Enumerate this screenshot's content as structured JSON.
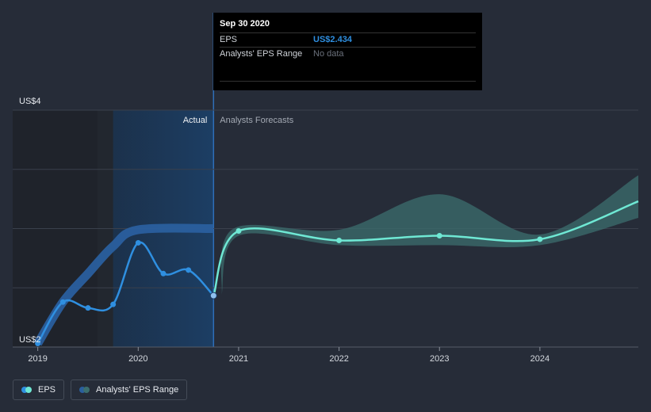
{
  "chart_data": {
    "type": "line",
    "y_axis": {
      "ticks": [
        {
          "value": 4,
          "label": "US$4"
        },
        {
          "value": 2,
          "label": "US$2"
        }
      ],
      "ylim": [
        2,
        4
      ]
    },
    "x_axis": {
      "ticks": [
        "2019",
        "2020",
        "2021",
        "2022",
        "2023",
        "2024"
      ],
      "xlim": [
        2018.75,
        2024.98
      ]
    },
    "section_labels": {
      "actual": "Actual",
      "forecast": "Analysts Forecasts"
    },
    "actual_boundary_x": 2020.75,
    "series": [
      {
        "name": "EPS",
        "color": "#2f8fe0",
        "points": [
          {
            "x": 2019.0,
            "y": 2.03
          },
          {
            "x": 2019.25,
            "y": 2.38
          },
          {
            "x": 2019.5,
            "y": 2.33
          },
          {
            "x": 2019.75,
            "y": 2.36
          },
          {
            "x": 2020.0,
            "y": 2.88
          },
          {
            "x": 2020.25,
            "y": 2.62
          },
          {
            "x": 2020.5,
            "y": 2.65
          },
          {
            "x": 2020.75,
            "y": 2.434
          }
        ]
      },
      {
        "name": "EPS forecast",
        "color": "#6fe8d4",
        "points": [
          {
            "x": 2020.75,
            "y": 2.434
          },
          {
            "x": 2021.0,
            "y": 2.98
          },
          {
            "x": 2022.0,
            "y": 2.9
          },
          {
            "x": 2023.0,
            "y": 2.94
          },
          {
            "x": 2024.0,
            "y": 2.91
          },
          {
            "x": 2024.98,
            "y": 3.23
          }
        ]
      }
    ],
    "analyst_range": {
      "name": "Analysts' EPS Range",
      "color": "#3c6e6e",
      "actual_upper": [
        {
          "x": 2019.0,
          "y": 2.03
        },
        {
          "x": 2019.25,
          "y": 2.38
        },
        {
          "x": 2019.5,
          "y": 2.62
        },
        {
          "x": 2019.75,
          "y": 2.85
        },
        {
          "x": 2020.0,
          "y": 2.99
        },
        {
          "x": 2020.75,
          "y": 3.0
        }
      ],
      "forecast_upper": [
        {
          "x": 2020.95,
          "y": 3.0
        },
        {
          "x": 2022.0,
          "y": 2.99
        },
        {
          "x": 2023.0,
          "y": 3.29
        },
        {
          "x": 2024.0,
          "y": 2.95
        },
        {
          "x": 2024.98,
          "y": 3.45
        }
      ],
      "forecast_lower": [
        {
          "x": 2024.98,
          "y": 3.09
        },
        {
          "x": 2024.0,
          "y": 2.86
        },
        {
          "x": 2023.0,
          "y": 2.86
        },
        {
          "x": 2022.0,
          "y": 2.86
        },
        {
          "x": 2021.0,
          "y": 2.94
        }
      ]
    }
  },
  "tooltip": {
    "date": "Sep 30 2020",
    "rows": [
      {
        "label": "EPS",
        "value": "US$2.434"
      },
      {
        "label": "Analysts' EPS Range",
        "value": "No data"
      }
    ]
  },
  "legend": [
    {
      "label": "EPS",
      "colors": [
        "#2f8fe0",
        "#6fe8d4"
      ]
    },
    {
      "label": "Analysts' EPS Range",
      "colors": [
        "#2a5f9e",
        "#3c6e6e"
      ]
    }
  ]
}
